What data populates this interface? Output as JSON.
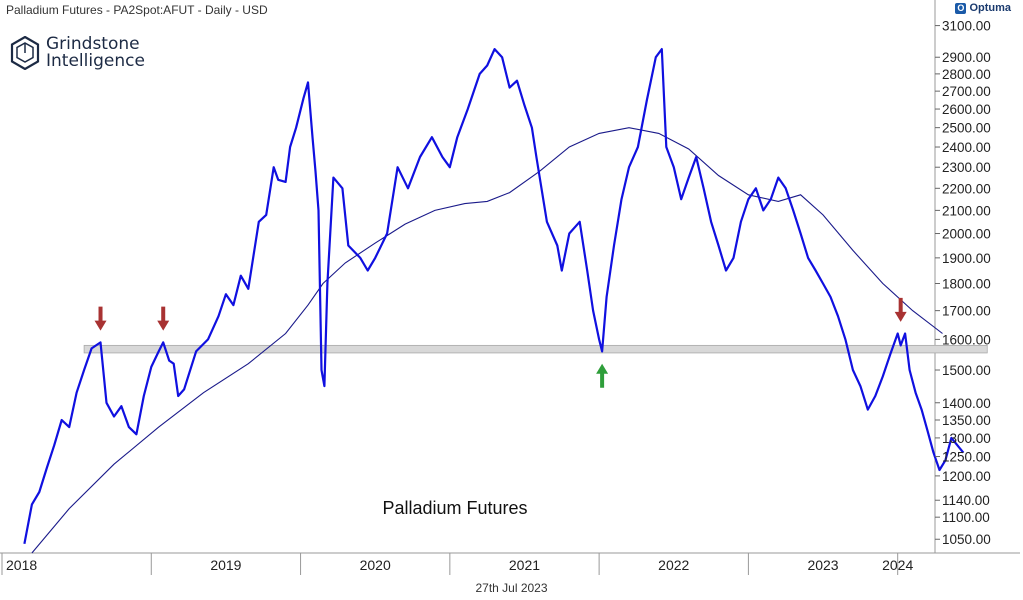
{
  "header": {
    "title": "Palladium Futures - PA2Spot:AFUT - Daily - USD"
  },
  "brand": {
    "name": "Optuma",
    "icon": "optuma-icon"
  },
  "logo": {
    "line1": "Grindstone",
    "line2": "Intelligence",
    "icon": "grindstone-logo-icon"
  },
  "date_label": "27th Jul 2023",
  "colors": {
    "price_line": "#1010e0",
    "moving_average": "#1a1a8a",
    "support_band": "#d8d8d8",
    "down_arrow": "#a83232",
    "up_arrow": "#2e9e3a"
  },
  "chart_data": {
    "type": "line",
    "annotation": "Palladium Futures",
    "y_scale": "log",
    "ylim": [
      1020,
      3150
    ],
    "y_ticks": [
      1050,
      1100,
      1140,
      1200,
      1250,
      1300,
      1350,
      1400,
      1500,
      1600,
      1700,
      1800,
      1900,
      2000,
      2100,
      2200,
      2300,
      2400,
      2500,
      2600,
      2700,
      2800,
      2900,
      3100
    ],
    "y_tick_labels": [
      "1050.00",
      "1100.00",
      "1140.00",
      "1200.00",
      "1250.00",
      "1300.00",
      "1350.00",
      "1400.00",
      "1500.00",
      "1600.00",
      "1700.00",
      "1800.00",
      "1900.00",
      "2000.00",
      "2100.00",
      "2200.00",
      "2300.00",
      "2400.00",
      "2500.00",
      "2600.00",
      "2700.00",
      "2800.00",
      "2900.00",
      "3100.00"
    ],
    "xlim": [
      2018.0,
      2024.25
    ],
    "x_ticks": [
      2018,
      2019,
      2020,
      2021,
      2022,
      2023,
      2024
    ],
    "x_tick_labels": [
      "2018",
      "2019",
      "2020",
      "2021",
      "2022",
      "2023",
      "2024"
    ],
    "series": [
      {
        "points": [
          [
            2018.15,
            1040
          ],
          [
            2018.2,
            1130
          ],
          [
            2018.25,
            1160
          ],
          [
            2018.3,
            1220
          ],
          [
            2018.35,
            1280
          ],
          [
            2018.4,
            1350
          ],
          [
            2018.45,
            1330
          ],
          [
            2018.5,
            1430
          ],
          [
            2018.55,
            1500
          ],
          [
            2018.6,
            1570
          ],
          [
            2018.66,
            1590
          ],
          [
            2018.7,
            1400
          ],
          [
            2018.75,
            1360
          ],
          [
            2018.8,
            1390
          ],
          [
            2018.85,
            1330
          ],
          [
            2018.9,
            1310
          ],
          [
            2018.95,
            1420
          ],
          [
            2019.0,
            1510
          ],
          [
            2019.05,
            1560
          ],
          [
            2019.08,
            1590
          ],
          [
            2019.12,
            1530
          ],
          [
            2019.15,
            1520
          ],
          [
            2019.18,
            1420
          ],
          [
            2019.22,
            1440
          ],
          [
            2019.3,
            1560
          ],
          [
            2019.38,
            1600
          ],
          [
            2019.45,
            1680
          ],
          [
            2019.5,
            1760
          ],
          [
            2019.55,
            1720
          ],
          [
            2019.6,
            1830
          ],
          [
            2019.65,
            1780
          ],
          [
            2019.72,
            2050
          ],
          [
            2019.77,
            2080
          ],
          [
            2019.82,
            2300
          ],
          [
            2019.85,
            2240
          ],
          [
            2019.9,
            2230
          ],
          [
            2019.93,
            2400
          ],
          [
            2019.97,
            2500
          ],
          [
            2020.02,
            2660
          ],
          [
            2020.05,
            2750
          ],
          [
            2020.08,
            2450
          ],
          [
            2020.1,
            2280
          ],
          [
            2020.12,
            2100
          ],
          [
            2020.14,
            1500
          ],
          [
            2020.16,
            1450
          ],
          [
            2020.18,
            1800
          ],
          [
            2020.22,
            2250
          ],
          [
            2020.28,
            2200
          ],
          [
            2020.32,
            1950
          ],
          [
            2020.4,
            1900
          ],
          [
            2020.45,
            1850
          ],
          [
            2020.5,
            1900
          ],
          [
            2020.58,
            2000
          ],
          [
            2020.65,
            2300
          ],
          [
            2020.72,
            2200
          ],
          [
            2020.8,
            2350
          ],
          [
            2020.88,
            2450
          ],
          [
            2020.95,
            2350
          ],
          [
            2021.0,
            2300
          ],
          [
            2021.05,
            2450
          ],
          [
            2021.12,
            2600
          ],
          [
            2021.2,
            2800
          ],
          [
            2021.25,
            2850
          ],
          [
            2021.3,
            2950
          ],
          [
            2021.35,
            2900
          ],
          [
            2021.4,
            2720
          ],
          [
            2021.45,
            2760
          ],
          [
            2021.5,
            2620
          ],
          [
            2021.55,
            2500
          ],
          [
            2021.58,
            2350
          ],
          [
            2021.6,
            2260
          ],
          [
            2021.65,
            2050
          ],
          [
            2021.72,
            1950
          ],
          [
            2021.75,
            1850
          ],
          [
            2021.8,
            2000
          ],
          [
            2021.87,
            2050
          ],
          [
            2021.92,
            1850
          ],
          [
            2021.96,
            1700
          ],
          [
            2022.0,
            1600
          ],
          [
            2022.02,
            1560
          ],
          [
            2022.05,
            1750
          ],
          [
            2022.1,
            1950
          ],
          [
            2022.15,
            2150
          ],
          [
            2022.2,
            2300
          ],
          [
            2022.26,
            2400
          ],
          [
            2022.32,
            2650
          ],
          [
            2022.38,
            2900
          ],
          [
            2022.42,
            2950
          ],
          [
            2022.45,
            2400
          ],
          [
            2022.5,
            2300
          ],
          [
            2022.55,
            2150
          ],
          [
            2022.6,
            2250
          ],
          [
            2022.65,
            2350
          ],
          [
            2022.7,
            2200
          ],
          [
            2022.75,
            2050
          ],
          [
            2022.8,
            1950
          ],
          [
            2022.85,
            1850
          ],
          [
            2022.9,
            1900
          ],
          [
            2022.95,
            2050
          ],
          [
            2023.0,
            2150
          ],
          [
            2023.05,
            2200
          ],
          [
            2023.1,
            2100
          ],
          [
            2023.15,
            2150
          ],
          [
            2023.2,
            2250
          ],
          [
            2023.25,
            2200
          ],
          [
            2023.3,
            2100
          ],
          [
            2023.35,
            2000
          ],
          [
            2023.4,
            1900
          ],
          [
            2023.45,
            1850
          ],
          [
            2023.5,
            1800
          ],
          [
            2023.55,
            1750
          ],
          [
            2023.6,
            1680
          ],
          [
            2023.65,
            1600
          ],
          [
            2023.7,
            1500
          ],
          [
            2023.75,
            1450
          ],
          [
            2023.8,
            1380
          ],
          [
            2023.85,
            1420
          ],
          [
            2023.9,
            1480
          ],
          [
            2023.95,
            1550
          ],
          [
            2024.0,
            1620
          ],
          [
            2024.02,
            1580
          ],
          [
            2024.05,
            1620
          ],
          [
            2024.08,
            1500
          ],
          [
            2024.12,
            1430
          ],
          [
            2024.16,
            1380
          ],
          [
            2024.2,
            1320
          ],
          [
            2024.24,
            1260
          ],
          [
            2024.28,
            1215
          ],
          [
            2024.32,
            1240
          ],
          [
            2024.36,
            1300
          ],
          [
            2024.4,
            1280
          ],
          [
            2024.44,
            1260
          ]
        ]
      },
      {
        "points": [
          [
            2018.2,
            1020
          ],
          [
            2018.45,
            1120
          ],
          [
            2018.75,
            1230
          ],
          [
            2019.05,
            1330
          ],
          [
            2019.35,
            1430
          ],
          [
            2019.65,
            1520
          ],
          [
            2019.9,
            1620
          ],
          [
            2020.05,
            1720
          ],
          [
            2020.15,
            1800
          ],
          [
            2020.3,
            1880
          ],
          [
            2020.5,
            1960
          ],
          [
            2020.7,
            2040
          ],
          [
            2020.9,
            2100
          ],
          [
            2021.1,
            2130
          ],
          [
            2021.25,
            2140
          ],
          [
            2021.4,
            2180
          ],
          [
            2021.6,
            2280
          ],
          [
            2021.8,
            2400
          ],
          [
            2022.0,
            2470
          ],
          [
            2022.2,
            2500
          ],
          [
            2022.4,
            2470
          ],
          [
            2022.6,
            2390
          ],
          [
            2022.8,
            2260
          ],
          [
            2023.0,
            2170
          ],
          [
            2023.2,
            2140
          ],
          [
            2023.35,
            2170
          ],
          [
            2023.5,
            2080
          ],
          [
            2023.7,
            1930
          ],
          [
            2023.9,
            1800
          ],
          [
            2024.1,
            1700
          ],
          [
            2024.3,
            1620
          ]
        ]
      }
    ],
    "support_band": {
      "low": 1555,
      "high": 1580,
      "x_start": 2018.55,
      "x_end": 2024.6
    },
    "markers": [
      {
        "type": "down-arrow",
        "x": 2018.66,
        "y": 1630
      },
      {
        "type": "down-arrow",
        "x": 2019.08,
        "y": 1630
      },
      {
        "type": "up-arrow",
        "x": 2022.02,
        "y": 1520
      },
      {
        "type": "down-arrow",
        "x": 2024.02,
        "y": 1660
      }
    ]
  }
}
